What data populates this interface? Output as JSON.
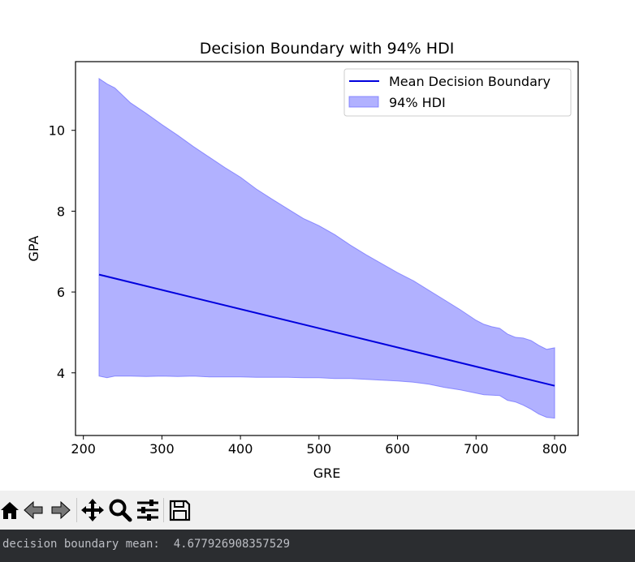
{
  "chart_data": {
    "type": "line",
    "title": "Decision Boundary with 94% HDI",
    "xlabel": "GRE",
    "ylabel": "GPA",
    "xlim": [
      190,
      830
    ],
    "ylim": [
      2.45,
      11.7
    ],
    "xticks": [
      200,
      300,
      400,
      500,
      600,
      700,
      800
    ],
    "yticks": [
      4,
      6,
      8,
      10
    ],
    "grid": false,
    "legend_position": "upper right",
    "legend": [
      "Mean Decision Boundary",
      "94% HDI"
    ],
    "series": [
      {
        "name": "Mean Decision Boundary",
        "type": "line",
        "color": "#0000dd",
        "x": [
          220,
          800
        ],
        "y": [
          6.43,
          3.68
        ]
      },
      {
        "name": "94% HDI",
        "type": "band",
        "color": "#6a6aff",
        "x": [
          220,
          230,
          240,
          260,
          280,
          300,
          320,
          340,
          360,
          380,
          400,
          420,
          440,
          460,
          480,
          500,
          520,
          540,
          560,
          580,
          600,
          620,
          640,
          660,
          680,
          700,
          710,
          720,
          730,
          740,
          750,
          760,
          770,
          780,
          790,
          800
        ],
        "lower": [
          3.92,
          3.88,
          3.92,
          3.92,
          3.91,
          3.92,
          3.91,
          3.92,
          3.9,
          3.9,
          3.9,
          3.89,
          3.89,
          3.89,
          3.88,
          3.88,
          3.86,
          3.86,
          3.84,
          3.82,
          3.8,
          3.77,
          3.72,
          3.64,
          3.58,
          3.5,
          3.46,
          3.45,
          3.44,
          3.32,
          3.28,
          3.2,
          3.1,
          2.98,
          2.9,
          2.88
        ],
        "upper": [
          11.28,
          11.15,
          11.05,
          10.68,
          10.42,
          10.14,
          9.88,
          9.6,
          9.34,
          9.08,
          8.84,
          8.55,
          8.3,
          8.06,
          7.82,
          7.64,
          7.42,
          7.16,
          6.92,
          6.7,
          6.48,
          6.28,
          6.04,
          5.8,
          5.56,
          5.3,
          5.2,
          5.14,
          5.1,
          4.96,
          4.88,
          4.86,
          4.8,
          4.68,
          4.58,
          4.62
        ]
      }
    ]
  },
  "toolbar": {
    "buttons": [
      "home-icon",
      "back-icon",
      "forward-icon",
      "pan-icon",
      "zoom-icon",
      "configure-subplots-icon",
      "save-icon"
    ]
  },
  "console": {
    "text": "decision boundary mean:  4.677926908357529"
  }
}
